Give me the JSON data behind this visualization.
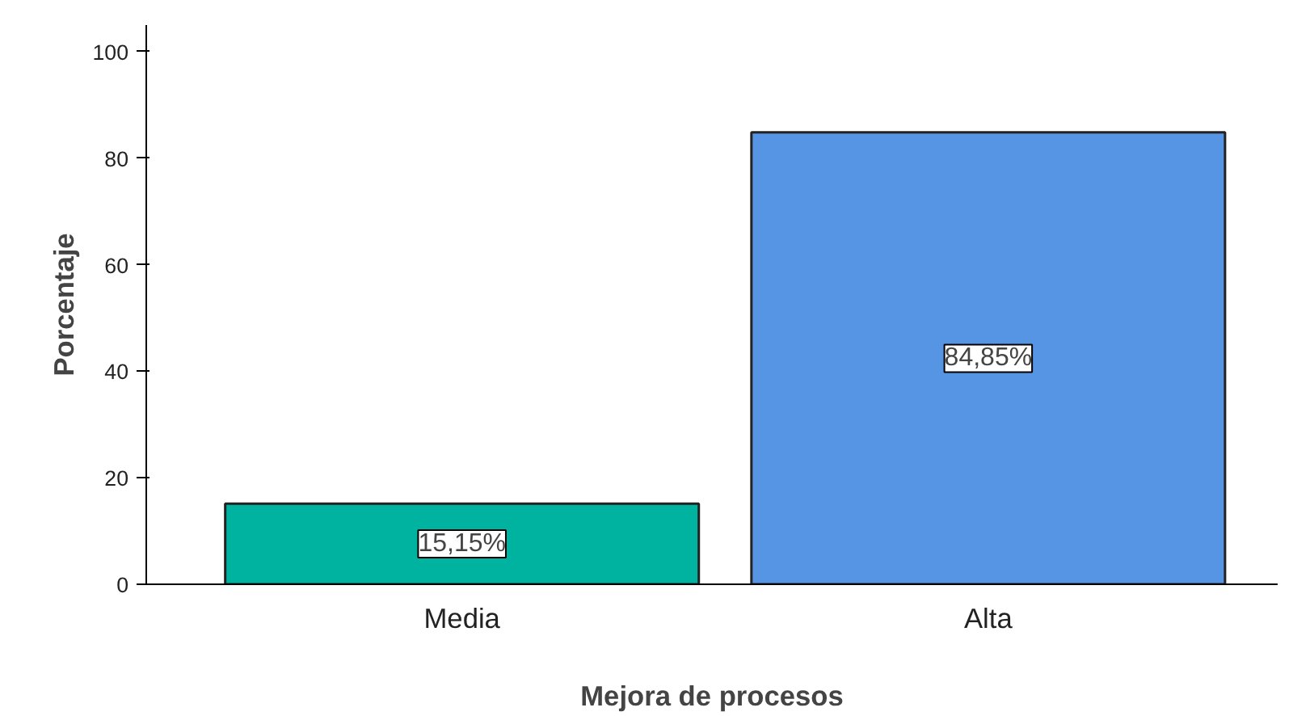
{
  "chart_data": {
    "type": "bar",
    "xlabel": "Mejora de procesos",
    "ylabel": "Porcentaje",
    "categories": [
      "Media",
      "Alta"
    ],
    "values": [
      15.15,
      84.85
    ],
    "colors": [
      "#00b2a0",
      "#5694e4"
    ],
    "value_labels": [
      "15,15%",
      "84,85%"
    ],
    "ylim": [
      0,
      105
    ],
    "yticks": [
      0,
      20,
      40,
      60,
      80,
      100
    ],
    "grid": false
  }
}
